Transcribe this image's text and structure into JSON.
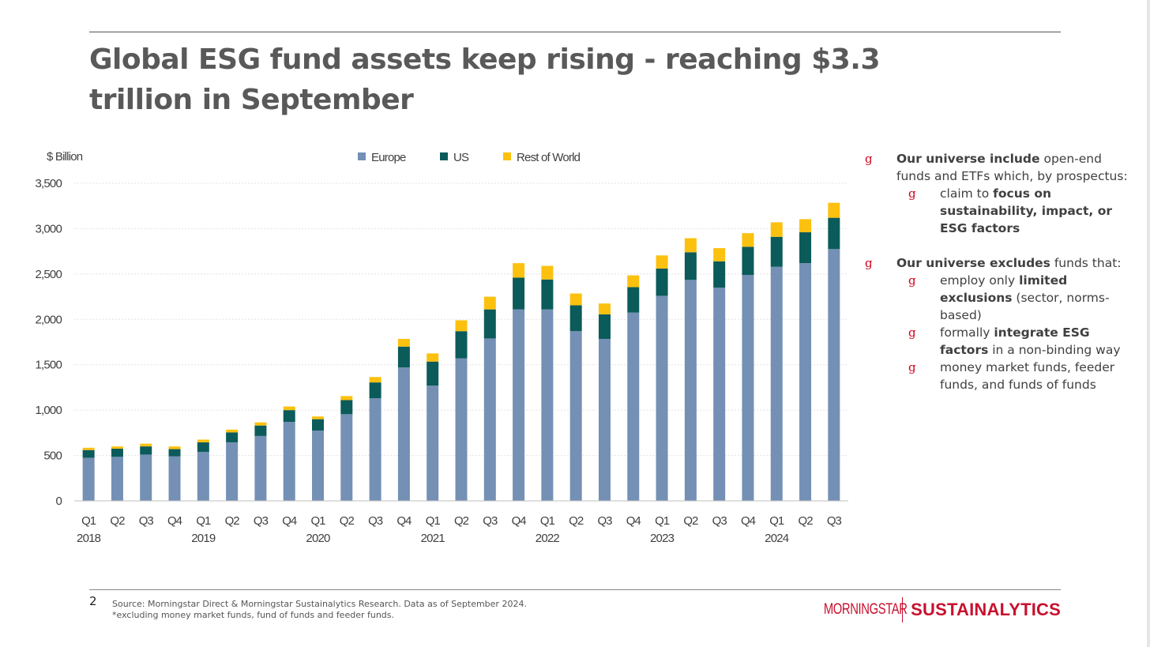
{
  "title": "Global ESG fund assets keep rising - reaching $3.3 trillion in September",
  "colors": {
    "europe": "#7490b4",
    "us": "#0b5b5a",
    "row": "#fcc10f",
    "accent": "#c8102e"
  },
  "chart_data": {
    "type": "bar",
    "stacked": true,
    "ylabel": "$ Billion",
    "ylim": [
      0,
      3500
    ],
    "yticks": [
      0,
      500,
      1000,
      1500,
      2000,
      2500,
      3000,
      3500
    ],
    "ytick_labels": [
      "0",
      "500",
      "1,000",
      "1,500",
      "2,000",
      "2,500",
      "3,000",
      "3,500"
    ],
    "legend_position": "top-center",
    "categories": [
      "Q1",
      "Q2",
      "Q3",
      "Q4",
      "Q1",
      "Q2",
      "Q3",
      "Q4",
      "Q1",
      "Q2",
      "Q3",
      "Q4",
      "Q1",
      "Q2",
      "Q3",
      "Q4",
      "Q1",
      "Q2",
      "Q3",
      "Q4",
      "Q1",
      "Q2",
      "Q3",
      "Q4",
      "Q1",
      "Q2",
      "Q3"
    ],
    "year_labels": [
      {
        "label": "2018",
        "index": 0
      },
      {
        "label": "2019",
        "index": 4
      },
      {
        "label": "2020",
        "index": 8
      },
      {
        "label": "2021",
        "index": 12
      },
      {
        "label": "2022",
        "index": 16
      },
      {
        "label": "2023",
        "index": 20
      },
      {
        "label": "2024",
        "index": 24
      }
    ],
    "series": [
      {
        "name": "Europe",
        "color": "#7490b4",
        "values": [
          475,
          485,
          510,
          490,
          540,
          645,
          715,
          870,
          775,
          955,
          1130,
          1470,
          1270,
          1570,
          1790,
          2110,
          2110,
          1870,
          1785,
          2075,
          2260,
          2435,
          2350,
          2490,
          2580,
          2620,
          2775
        ]
      },
      {
        "name": "US",
        "color": "#0b5b5a",
        "values": [
          85,
          90,
          90,
          80,
          105,
          110,
          115,
          130,
          125,
          155,
          175,
          230,
          265,
          300,
          320,
          350,
          330,
          285,
          270,
          280,
          300,
          305,
          290,
          310,
          330,
          340,
          345
        ]
      },
      {
        "name": "Rest of World",
        "color": "#fcc10f",
        "values": [
          25,
          25,
          30,
          30,
          30,
          30,
          35,
          40,
          30,
          45,
          60,
          85,
          90,
          120,
          140,
          160,
          150,
          130,
          120,
          130,
          145,
          155,
          145,
          150,
          160,
          145,
          165
        ]
      }
    ]
  },
  "bullets": [
    {
      "level": 1,
      "mark": "g",
      "parts": [
        {
          "t": "Our universe include",
          "b": true
        },
        {
          "t": " open-end funds and ETFs which, by prospectus:",
          "b": false
        }
      ]
    },
    {
      "level": 2,
      "mark": "g",
      "parts": [
        {
          "t": "claim to ",
          "b": false
        },
        {
          "t": "focus on sustainability, impact, or ESG factors",
          "b": true
        }
      ]
    },
    {
      "level": 1,
      "mark": "g",
      "gap": true,
      "parts": [
        {
          "t": "Our universe excludes",
          "b": true
        },
        {
          "t": " funds that:",
          "b": false
        }
      ]
    },
    {
      "level": 2,
      "mark": "g",
      "parts": [
        {
          "t": "employ only ",
          "b": false
        },
        {
          "t": "limited exclusions",
          "b": true
        },
        {
          "t": " (sector, norms-based)",
          "b": false
        }
      ]
    },
    {
      "level": 2,
      "mark": "g",
      "parts": [
        {
          "t": "formally ",
          "b": false
        },
        {
          "t": "integrate ESG factors",
          "b": true
        },
        {
          "t": " in a non-binding way",
          "b": false
        }
      ]
    },
    {
      "level": 2,
      "mark": "g",
      "parts": [
        {
          "t": "money market funds, feeder funds, and funds of funds",
          "b": false
        }
      ]
    }
  ],
  "footer": {
    "page_number": "2",
    "source_line1": "Source: Morningstar Direct & Morningstar Sustainalytics Research. Data as of September 2024.",
    "source_line2": "*excluding money market funds, fund of funds and feeder funds.",
    "logo_morningstar": "MORNINGSTAR",
    "logo_sustainalytics": "SUSTAINALYTICS"
  }
}
